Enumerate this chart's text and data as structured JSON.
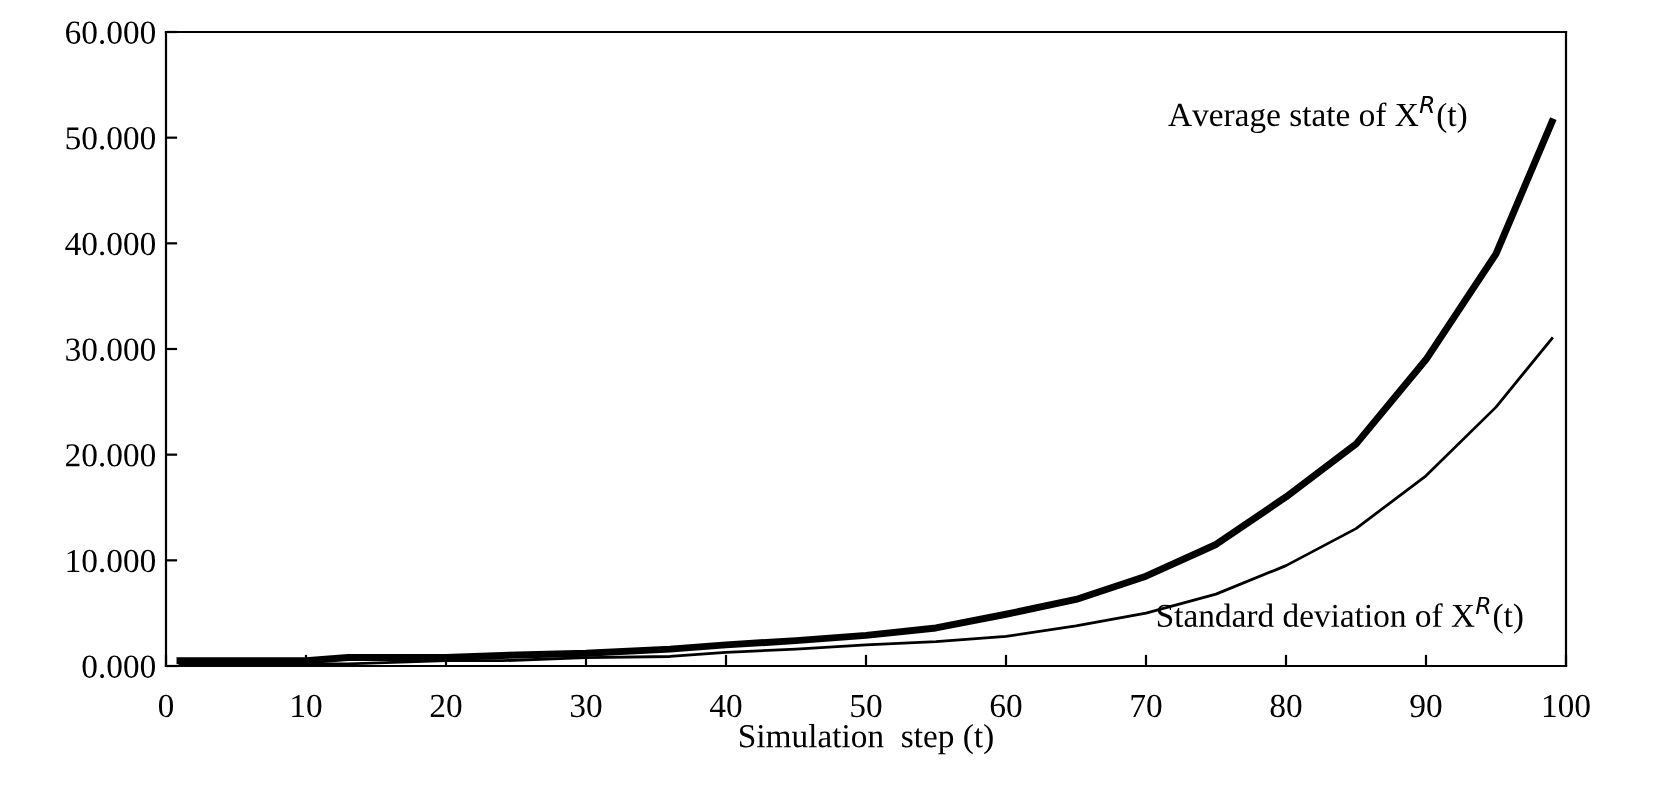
{
  "chart_data": {
    "type": "line",
    "xlabel": "Simulation  step (t)",
    "x": [
      1,
      10,
      13,
      20,
      24,
      30,
      36,
      40,
      45,
      50,
      55,
      60,
      65,
      70,
      75,
      80,
      85,
      90,
      95,
      99
    ],
    "series": [
      {
        "name": "Average state of X$^{R}$(t)",
        "color": "#000000",
        "values": [
          0.5,
          0.5,
          0.8,
          0.8,
          1.0,
          1.2,
          1.6,
          2.0,
          2.4,
          2.9,
          3.6,
          4.9,
          6.3,
          8.5,
          11.5,
          16.0,
          21.0,
          29.0,
          39.0,
          51.5
        ]
      },
      {
        "name": "Standard deviation of X$^{R}$(t)",
        "color": "#000000",
        "values": [
          0.1,
          0.2,
          0.2,
          0.5,
          0.5,
          0.8,
          0.9,
          1.3,
          1.6,
          2.0,
          2.3,
          2.8,
          3.8,
          5.0,
          6.8,
          9.5,
          13.0,
          18.0,
          24.5,
          31.0
        ]
      }
    ],
    "xlim": [
      0,
      100
    ],
    "xticks": [
      0,
      10,
      20,
      30,
      40,
      50,
      60,
      70,
      80,
      90,
      100
    ],
    "ylim": [
      0,
      60
    ],
    "yticks": [
      {
        "value": 0,
        "label": "0.000"
      },
      {
        "value": 10,
        "label": "10.000"
      },
      {
        "value": 20,
        "label": "20.000"
      },
      {
        "value": 30,
        "label": "30.000"
      },
      {
        "value": 40,
        "label": "40.000"
      },
      {
        "value": 50,
        "label": "50.000"
      },
      {
        "value": 60,
        "label": "60.000"
      }
    ],
    "grid": false,
    "legend": false,
    "marker": "none",
    "line_style": "solid"
  }
}
